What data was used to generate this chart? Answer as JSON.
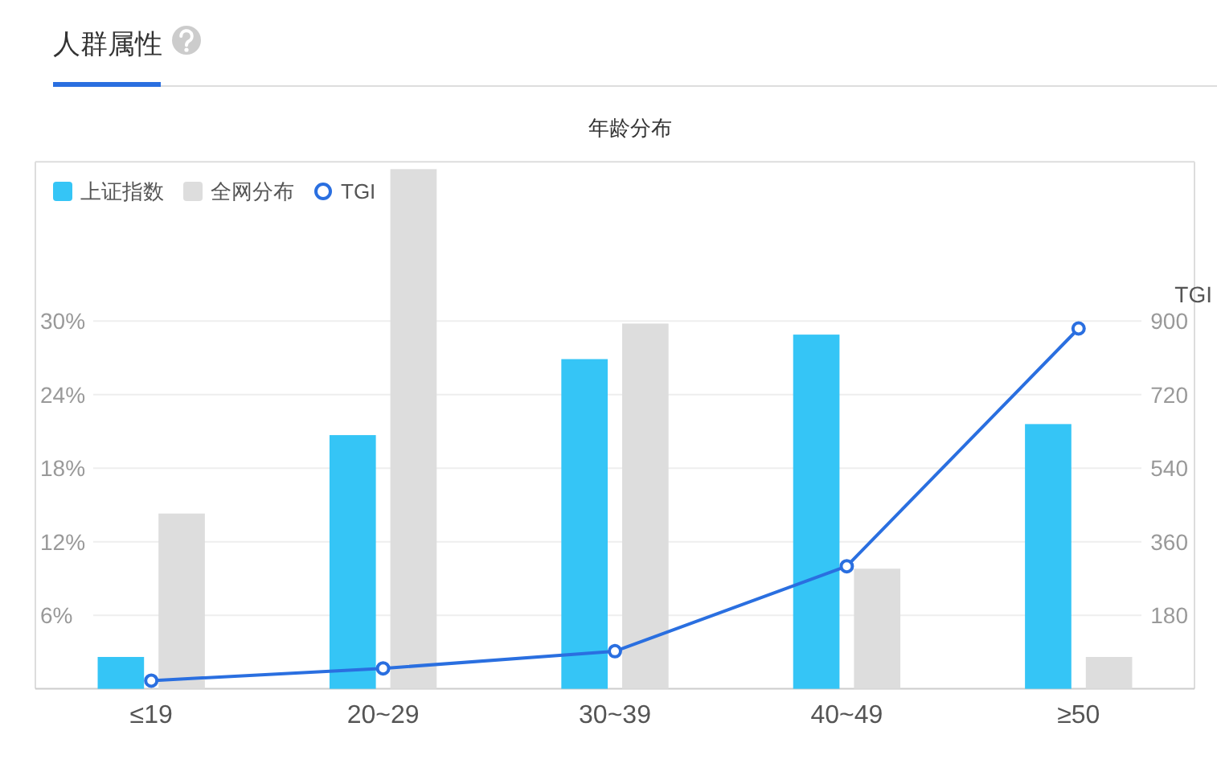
{
  "chart_data": {
    "type": "bar",
    "title": "人群属性",
    "subtitle": "年龄分布",
    "y2label": "TGI",
    "categories": [
      "≤19",
      "20~29",
      "30~39",
      "40~49",
      "≥50"
    ],
    "series": [
      {
        "name": "上证指数",
        "color": "#35c5f6",
        "values": [
          2.6,
          20.7,
          26.9,
          28.9,
          21.6
        ]
      },
      {
        "name": "全网分布",
        "color": "#dddddd",
        "values": [
          14.3,
          42.4,
          29.8,
          9.8,
          2.6
        ]
      },
      {
        "name": "TGI",
        "type": "line",
        "axis": "y2",
        "color": "#2a6fe0",
        "values": [
          20,
          50,
          92,
          300,
          882
        ]
      }
    ],
    "ylim": [
      0,
      43
    ],
    "yticks": [
      {
        "value": 6,
        "label": "6%"
      },
      {
        "value": 12,
        "label": "12%"
      },
      {
        "value": 18,
        "label": "18%"
      },
      {
        "value": 24,
        "label": "24%"
      },
      {
        "value": 30,
        "label": "30%"
      }
    ],
    "y2lim": [
      0,
      1290
    ],
    "y2ticks": [
      180,
      360,
      540,
      720,
      900
    ],
    "grid": "y",
    "legend": "top left",
    "marker": "circle"
  }
}
